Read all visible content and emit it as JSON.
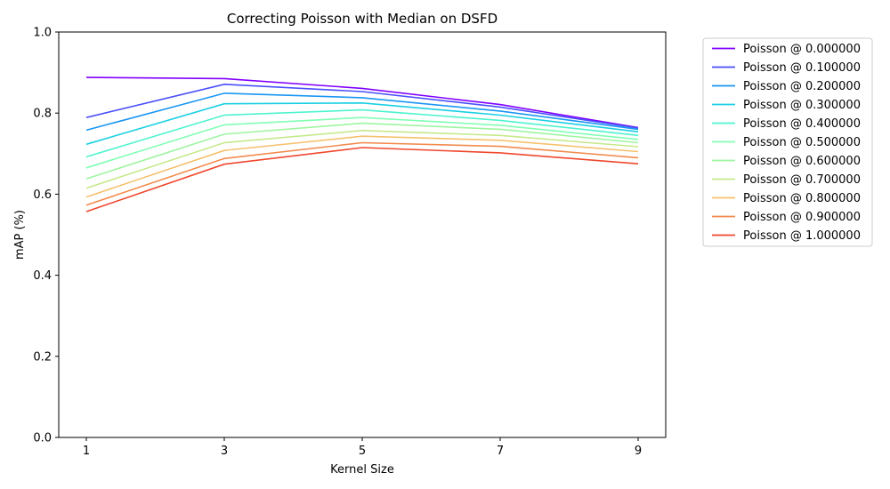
{
  "chart_data": {
    "type": "line",
    "title": "Correcting Poisson with Median on DSFD",
    "xlabel": "Kernel Size",
    "ylabel": "mAP (%)",
    "x": [
      1,
      3,
      5,
      7,
      9
    ],
    "xlim": [
      0.6,
      9.4
    ],
    "ylim": [
      0.0,
      1.0
    ],
    "yticks": [
      "0.0",
      "0.2",
      "0.4",
      "0.6",
      "0.8",
      "1.0"
    ],
    "xticks": [
      "1",
      "3",
      "5",
      "7",
      "9"
    ],
    "grid": false,
    "legend_position": "outside-right",
    "series": [
      {
        "name": "Poisson @ 0.000000",
        "color": "#8000ff",
        "values": [
          0.888,
          0.885,
          0.861,
          0.821,
          0.764
        ]
      },
      {
        "name": "Poisson @ 0.100000",
        "color": "#4a4ffb",
        "values": [
          0.789,
          0.871,
          0.853,
          0.815,
          0.763
        ]
      },
      {
        "name": "Poisson @ 0.200000",
        "color": "#1996f3",
        "values": [
          0.758,
          0.849,
          0.838,
          0.805,
          0.76
        ]
      },
      {
        "name": "Poisson @ 0.300000",
        "color": "#1acfe3",
        "values": [
          0.723,
          0.823,
          0.825,
          0.795,
          0.754
        ]
      },
      {
        "name": "Poisson @ 0.400000",
        "color": "#4df3ce",
        "values": [
          0.692,
          0.795,
          0.808,
          0.782,
          0.745
        ]
      },
      {
        "name": "Poisson @ 0.500000",
        "color": "#80ffb4",
        "values": [
          0.665,
          0.771,
          0.789,
          0.77,
          0.735
        ]
      },
      {
        "name": "Poisson @ 0.600000",
        "color": "#9ef5a0",
        "values": [
          0.638,
          0.748,
          0.775,
          0.76,
          0.727
        ]
      },
      {
        "name": "Poisson @ 0.700000",
        "color": "#c7e98b",
        "values": [
          0.615,
          0.727,
          0.757,
          0.745,
          0.717
        ]
      },
      {
        "name": "Poisson @ 0.800000",
        "color": "#f5c16e",
        "values": [
          0.593,
          0.708,
          0.743,
          0.733,
          0.705
        ]
      },
      {
        "name": "Poisson @ 0.900000",
        "color": "#f28a4d",
        "values": [
          0.573,
          0.688,
          0.727,
          0.718,
          0.69
        ]
      },
      {
        "name": "Poisson @ 1.000000",
        "color": "#f0472d",
        "values": [
          0.557,
          0.674,
          0.715,
          0.702,
          0.675
        ]
      }
    ]
  }
}
